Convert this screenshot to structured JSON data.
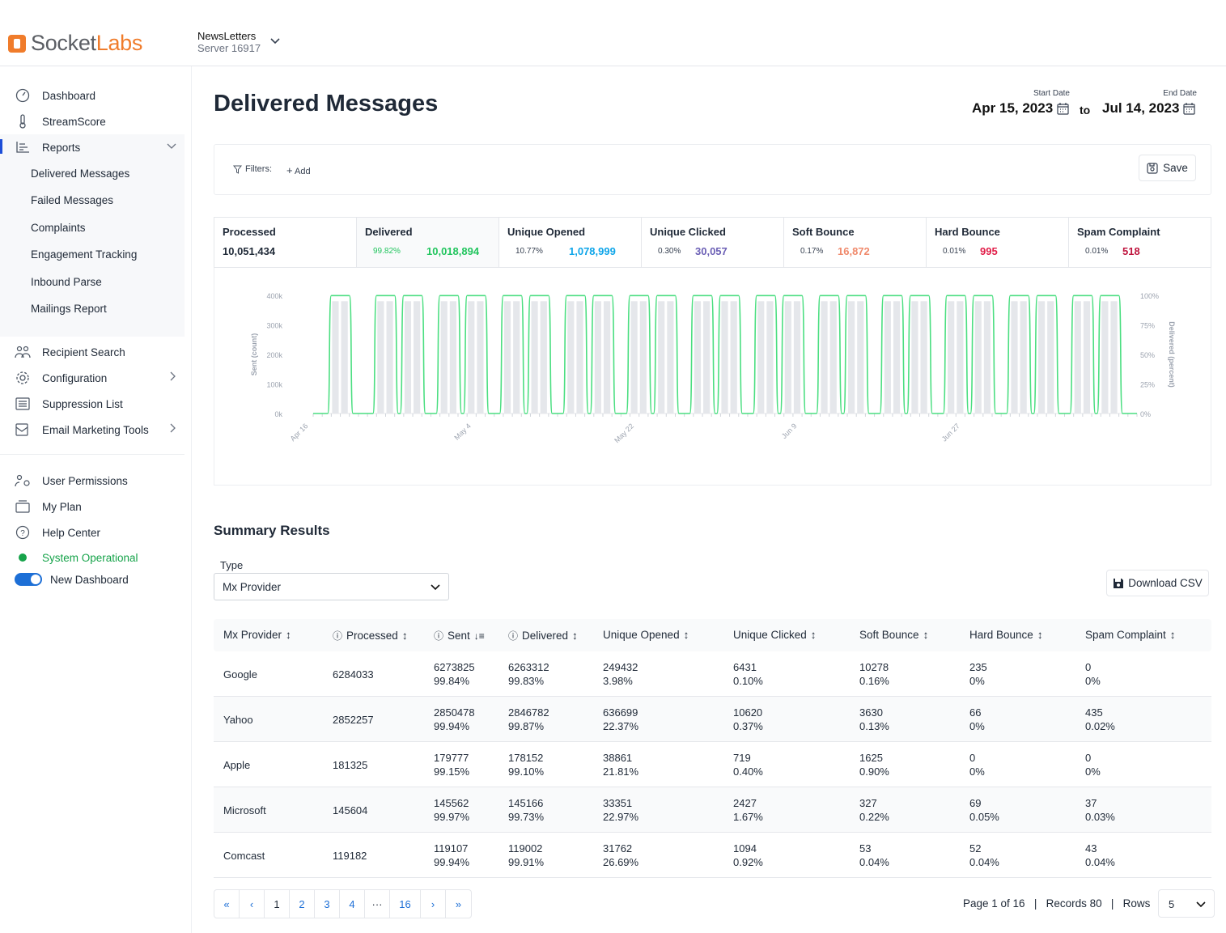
{
  "app": {
    "logo_part1": "Socket",
    "logo_part2": "Labs",
    "server_name": "NewsLetters",
    "server_id": "Server 16917",
    "brand_color": "#f07c2b"
  },
  "sidebar": {
    "items": [
      {
        "label": "Dashboard",
        "icon": "dashboard-icon"
      },
      {
        "label": "StreamScore",
        "icon": "thermometer-icon"
      },
      {
        "label": "Reports",
        "icon": "reports-icon"
      }
    ],
    "reports_sub": [
      "Delivered Messages",
      "Failed Messages",
      "Complaints",
      "Engagement Tracking",
      "Inbound Parse",
      "Mailings Report"
    ],
    "items2": [
      {
        "label": "Recipient Search",
        "icon": "users-icon"
      },
      {
        "label": "Configuration",
        "icon": "gear-icon"
      },
      {
        "label": "Suppression List",
        "icon": "list-icon"
      },
      {
        "label": "Email Marketing Tools",
        "icon": "email-tools-icon"
      }
    ],
    "items3": [
      {
        "label": "User Permissions",
        "icon": "permissions-icon"
      },
      {
        "label": "My Plan",
        "icon": "plan-icon"
      },
      {
        "label": "Help Center",
        "icon": "help-icon"
      }
    ],
    "status": "System Operational",
    "status_color": "#16a34a",
    "new_dashboard": "New Dashboard"
  },
  "page": {
    "title": "Delivered Messages",
    "start_label": "Start Date",
    "start_date": "Apr 15, 2023",
    "to": "to",
    "end_label": "End Date",
    "end_date": "Jul 14, 2023"
  },
  "filters": {
    "label": "Filters:",
    "add": "Add",
    "save": "Save"
  },
  "stats": [
    {
      "label": "Processed",
      "pct": "",
      "value": "10,051,434",
      "color": "#1f2937"
    },
    {
      "label": "Delivered",
      "pct": "99.82%",
      "value": "10,018,894",
      "color": "#22c55e"
    },
    {
      "label": "Unique Opened",
      "pct": "10.77%",
      "value": "1,078,999",
      "color": "#0ea5e9"
    },
    {
      "label": "Unique Clicked",
      "pct": "0.30%",
      "value": "30,057",
      "color": "#6b5fb5"
    },
    {
      "label": "Soft Bounce",
      "pct": "0.17%",
      "value": "16,872",
      "color": "#f08a6c"
    },
    {
      "label": "Hard Bounce",
      "pct": "0.01%",
      "value": "995",
      "color": "#e11d48"
    },
    {
      "label": "Spam Complaint",
      "pct": "0.01%",
      "value": "518",
      "color": "#be123c"
    }
  ],
  "chart_data": {
    "type": "bar",
    "left_axis_label": "Sent (count)",
    "right_axis_label": "Delivered (percent)",
    "y_ticks": [
      "400k",
      "300k",
      "200k",
      "100k",
      "0k"
    ],
    "y2_ticks": [
      "100%",
      "75%",
      "50%",
      "25%",
      "0%"
    ],
    "x_labels": [
      "Apr 16",
      "May 4",
      "May 22",
      "Jun 9",
      "Jun 27"
    ],
    "ylim": [
      0,
      400000
    ],
    "y2lim": [
      0,
      100
    ],
    "bar_color": "#e5e7eb",
    "line_color": "#4ade80",
    "sent_days": [
      2,
      3,
      7,
      8,
      10,
      11,
      14,
      15,
      17,
      18,
      21,
      22,
      24,
      25,
      28,
      29,
      31,
      32,
      35,
      36,
      38,
      39,
      42,
      43,
      45,
      46,
      49,
      50,
      52,
      53,
      56,
      57,
      59,
      60,
      63,
      64,
      66,
      67,
      70,
      71,
      73,
      74,
      77,
      78,
      80,
      81,
      84,
      85,
      87,
      88
    ],
    "sent_value": 380000,
    "delivered_pct_days_high": [
      [
        2,
        4
      ],
      [
        7,
        9
      ],
      [
        10,
        12
      ],
      [
        14,
        16
      ],
      [
        17,
        19
      ],
      [
        21,
        23
      ],
      [
        24,
        26
      ],
      [
        28,
        30
      ],
      [
        31,
        33
      ],
      [
        35,
        37
      ],
      [
        38,
        40
      ],
      [
        42,
        44
      ],
      [
        45,
        47
      ],
      [
        49,
        51
      ],
      [
        52,
        54
      ],
      [
        56,
        58
      ],
      [
        59,
        61
      ],
      [
        63,
        65
      ],
      [
        66,
        68
      ],
      [
        70,
        72
      ],
      [
        73,
        75
      ],
      [
        77,
        79
      ],
      [
        80,
        82
      ],
      [
        84,
        86
      ],
      [
        87,
        89
      ]
    ],
    "delivered_high_pct": 99.8,
    "total_days": 91
  },
  "summary": {
    "title": "Summary Results",
    "type_label": "Type",
    "type_value": "Mx Provider",
    "download": "Download CSV",
    "columns": [
      "Mx Provider",
      "Processed",
      "Sent",
      "Delivered",
      "Unique Opened",
      "Unique Clicked",
      "Soft Bounce",
      "Hard Bounce",
      "Spam Complaint"
    ],
    "rows": [
      {
        "provider": "Google",
        "processed": "6284033",
        "sent": "6273825",
        "sent_pct": "99.84%",
        "delivered": "6263312",
        "delivered_pct": "99.83%",
        "opened": "249432",
        "opened_pct": "3.98%",
        "clicked": "6431",
        "clicked_pct": "0.10%",
        "soft": "10278",
        "soft_pct": "0.16%",
        "hard": "235",
        "hard_pct": "0%",
        "spam": "0",
        "spam_pct": "0%"
      },
      {
        "provider": "Yahoo",
        "processed": "2852257",
        "sent": "2850478",
        "sent_pct": "99.94%",
        "delivered": "2846782",
        "delivered_pct": "99.87%",
        "opened": "636699",
        "opened_pct": "22.37%",
        "clicked": "10620",
        "clicked_pct": "0.37%",
        "soft": "3630",
        "soft_pct": "0.13%",
        "hard": "66",
        "hard_pct": "0%",
        "spam": "435",
        "spam_pct": "0.02%"
      },
      {
        "provider": "Apple",
        "processed": "181325",
        "sent": "179777",
        "sent_pct": "99.15%",
        "delivered": "178152",
        "delivered_pct": "99.10%",
        "opened": "38861",
        "opened_pct": "21.81%",
        "clicked": "719",
        "clicked_pct": "0.40%",
        "soft": "1625",
        "soft_pct": "0.90%",
        "hard": "0",
        "hard_pct": "0%",
        "spam": "0",
        "spam_pct": "0%"
      },
      {
        "provider": "Microsoft",
        "processed": "145604",
        "sent": "145562",
        "sent_pct": "99.97%",
        "delivered": "145166",
        "delivered_pct": "99.73%",
        "opened": "33351",
        "opened_pct": "22.97%",
        "clicked": "2427",
        "clicked_pct": "1.67%",
        "soft": "327",
        "soft_pct": "0.22%",
        "hard": "69",
        "hard_pct": "0.05%",
        "spam": "37",
        "spam_pct": "0.03%"
      },
      {
        "provider": "Comcast",
        "processed": "119182",
        "sent": "119107",
        "sent_pct": "99.94%",
        "delivered": "119002",
        "delivered_pct": "99.91%",
        "opened": "31762",
        "opened_pct": "26.69%",
        "clicked": "1094",
        "clicked_pct": "0.92%",
        "soft": "53",
        "soft_pct": "0.04%",
        "hard": "52",
        "hard_pct": "0.04%",
        "spam": "43",
        "spam_pct": "0.04%"
      }
    ]
  },
  "pagination": {
    "pages": [
      "1",
      "2",
      "3",
      "4",
      "···",
      "16"
    ],
    "first": "«",
    "prev": "‹",
    "next": "›",
    "last": "»",
    "info": "Page 1 of 16",
    "records": "Records 80",
    "rows_label": "Rows",
    "rows_value": "5"
  }
}
